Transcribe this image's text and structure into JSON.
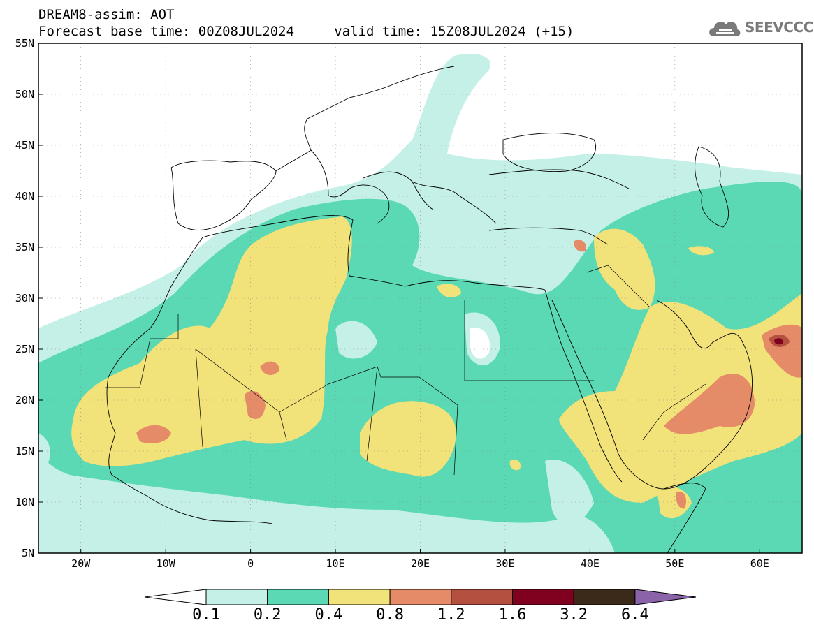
{
  "title_line1": "DREAM8-assim: AOT",
  "title_line2": "Forecast base time: 00Z08JUL2024     valid time: 15Z08JUL2024 (+15)",
  "logo_text": "SEEVCCC",
  "map": {
    "lon_range": [
      -25,
      65
    ],
    "lat_range": [
      5,
      55
    ],
    "lon_ticks": [
      "20W",
      "10W",
      "0",
      "10E",
      "20E",
      "30E",
      "40E",
      "50E",
      "60E"
    ],
    "lat_ticks": [
      "55N",
      "50N",
      "45N",
      "40N",
      "35N",
      "30N",
      "25N",
      "20N",
      "15N",
      "10N",
      "5N"
    ],
    "variable": "AOT"
  },
  "colorbar": {
    "labels": [
      "0.1",
      "0.2",
      "0.4",
      "0.8",
      "1.2",
      "1.6",
      "3.2",
      "6.4"
    ],
    "colors": [
      "#c4f0e8",
      "#5ad9b4",
      "#f2e27a",
      "#e58b67",
      "#b4503f",
      "#800020",
      "#3b2a1a",
      "#8a63a8"
    ]
  },
  "colors": {
    "aot_0_1": "#c4f0e8",
    "aot_0_2": "#5ad9b4",
    "aot_0_4": "#f2e27a",
    "aot_0_8": "#e58b67",
    "aot_1_2": "#b4503f",
    "aot_1_6": "#800020"
  }
}
